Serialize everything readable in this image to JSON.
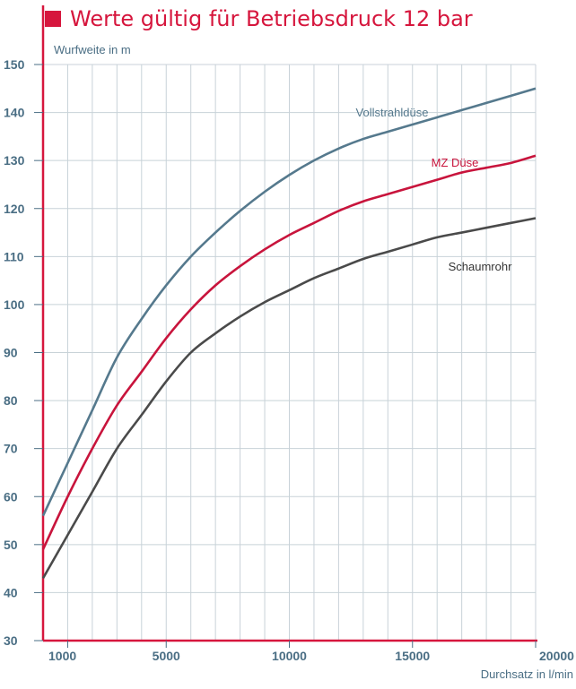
{
  "title": "Werte gültig für Betriebsdruck 12 bar",
  "colors": {
    "accent": "#d6163d",
    "axis": "#d6163d",
    "grid": "#c8d2d8",
    "tick_text": "#4a6e84"
  },
  "chart_data": {
    "type": "line",
    "title": "Werte gültig für Betriebsdruck 12 bar",
    "xlabel": "Durchsatz in l/min",
    "ylabel": "Wurfweite in m",
    "xlim": [
      0,
      20000
    ],
    "ylim": [
      30,
      150
    ],
    "x_ticks": [
      1000,
      5000,
      10000,
      15000,
      20000
    ],
    "y_ticks": [
      30,
      40,
      50,
      60,
      70,
      80,
      90,
      100,
      110,
      120,
      130,
      140,
      150
    ],
    "grid": true,
    "series": [
      {
        "name": "Vollstrahldüse",
        "color": "#55798d",
        "label_color": "#55798d",
        "x": [
          0,
          1000,
          2000,
          3000,
          4000,
          5000,
          6000,
          7000,
          8000,
          9000,
          10000,
          11000,
          12000,
          13000,
          14000,
          15000,
          16000,
          17000,
          18000,
          19000,
          20000
        ],
        "y": [
          56,
          67,
          78,
          89,
          97,
          104,
          110,
          115,
          119.5,
          123.5,
          127,
          130,
          132.5,
          134.5,
          136,
          137.5,
          139,
          140.5,
          142,
          143.5,
          145
        ]
      },
      {
        "name": "MZ Düse",
        "color": "#c8143c",
        "label_color": "#c8143c",
        "x": [
          0,
          1000,
          2000,
          3000,
          4000,
          5000,
          6000,
          7000,
          8000,
          9000,
          10000,
          11000,
          12000,
          13000,
          14000,
          15000,
          16000,
          17000,
          18000,
          19000,
          20000
        ],
        "y": [
          49,
          60,
          70,
          79,
          86,
          93,
          99,
          104,
          108,
          111.5,
          114.5,
          117,
          119.5,
          121.5,
          123,
          124.5,
          126,
          127.5,
          128.5,
          129.5,
          131
        ]
      },
      {
        "name": "Schaumrohr",
        "color": "#4a4a4a",
        "label_color": "#333333",
        "x": [
          0,
          1000,
          2000,
          3000,
          4000,
          5000,
          6000,
          7000,
          8000,
          9000,
          10000,
          11000,
          12000,
          13000,
          14000,
          15000,
          16000,
          17000,
          18000,
          19000,
          20000
        ],
        "y": [
          43,
          52,
          61,
          70,
          77,
          84,
          90,
          94,
          97.5,
          100.5,
          103,
          105.5,
          107.5,
          109.5,
          111,
          112.5,
          114,
          115,
          116,
          117,
          118
        ]
      }
    ]
  }
}
